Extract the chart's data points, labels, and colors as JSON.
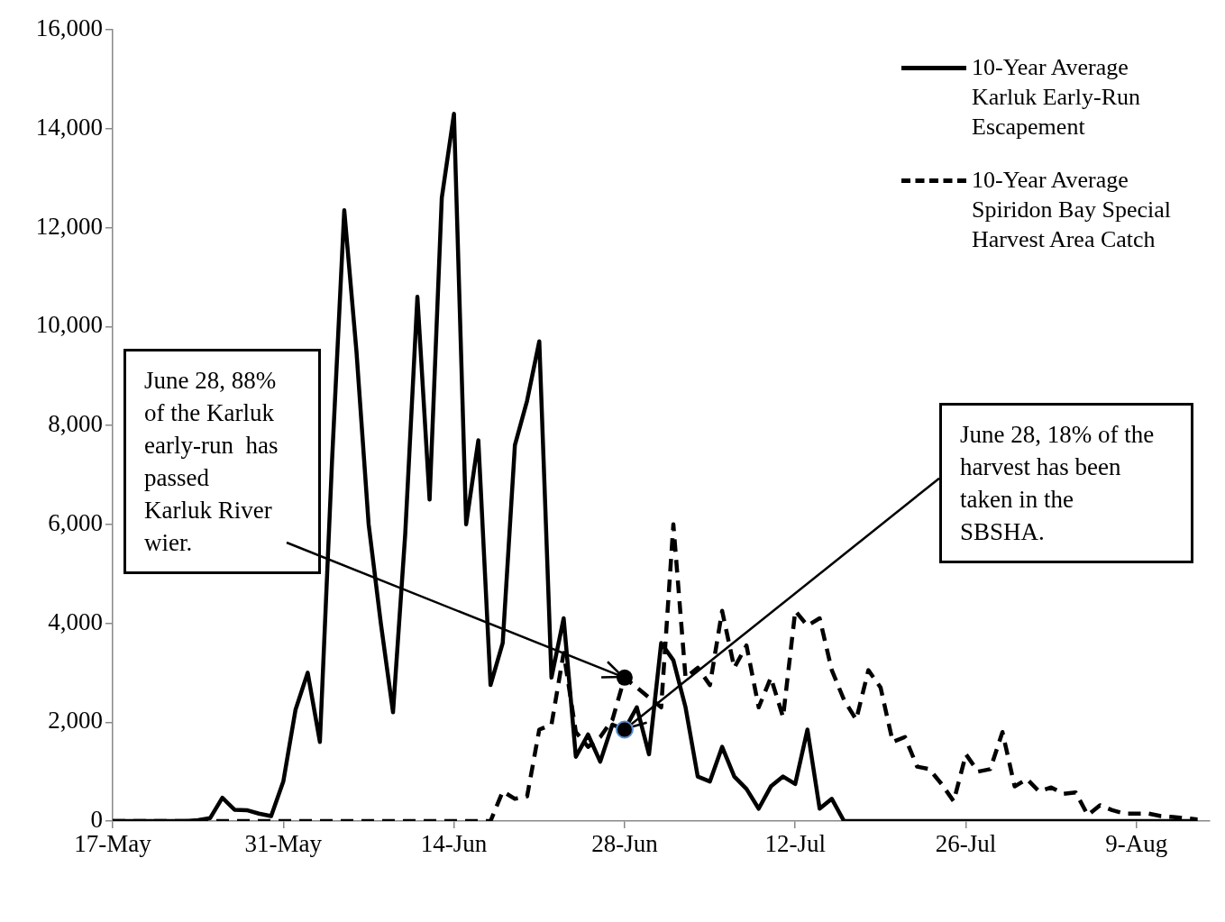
{
  "chart_data": {
    "type": "line",
    "x": [
      "--05-17",
      "--05-18",
      "--05-19",
      "--05-20",
      "--05-21",
      "--05-22",
      "--05-23",
      "--05-24",
      "--05-25",
      "--05-26",
      "--05-27",
      "--05-28",
      "--05-29",
      "--05-30",
      "--05-31",
      "--06-01",
      "--06-02",
      "--06-03",
      "--06-04",
      "--06-05",
      "--06-06",
      "--06-07",
      "--06-08",
      "--06-09",
      "--06-10",
      "--06-11",
      "--06-12",
      "--06-13",
      "--06-14",
      "--06-15",
      "--06-16",
      "--06-17",
      "--06-18",
      "--06-19",
      "--06-20",
      "--06-21",
      "--06-22",
      "--06-23",
      "--06-24",
      "--06-25",
      "--06-26",
      "--06-27",
      "--06-28",
      "--06-29",
      "--06-30",
      "--07-01",
      "--07-02",
      "--07-03",
      "--07-04",
      "--07-05",
      "--07-06",
      "--07-07",
      "--07-08",
      "--07-09",
      "--07-10",
      "--07-11",
      "--07-12",
      "--07-13",
      "--07-14",
      "--07-15",
      "--07-16",
      "--07-17",
      "--07-18",
      "--07-19",
      "--07-20",
      "--07-21",
      "--07-22",
      "--07-23",
      "--07-24",
      "--07-25",
      "--07-26",
      "--07-27",
      "--07-28",
      "--07-29",
      "--07-30",
      "--07-31",
      "--08-01",
      "--08-02",
      "--08-03",
      "--08-04",
      "--08-05",
      "--08-06",
      "--08-07",
      "--08-08",
      "--08-09",
      "--08-10",
      "--08-11",
      "--08-12",
      "--08-13",
      "--08-14"
    ],
    "series": [
      {
        "name": "10-Year Average Karluk Early-Run Escapement",
        "color": "#000000",
        "line_style": "solid",
        "values": [
          0,
          0,
          0,
          0,
          0,
          0,
          0,
          20,
          60,
          470,
          230,
          220,
          150,
          100,
          800,
          2250,
          3000,
          1600,
          7300,
          12350,
          9500,
          6000,
          4000,
          2200,
          5800,
          10600,
          6500,
          12600,
          14300,
          6000,
          7700,
          2750,
          3600,
          7600,
          8500,
          9700,
          2900,
          4100,
          1300,
          1750,
          1200,
          1950,
          1850,
          2300,
          1350,
          3600,
          3250,
          2300,
          900,
          800,
          1500,
          900,
          650,
          250,
          700,
          900,
          750,
          1850,
          250,
          450,
          0,
          0,
          0,
          0,
          0,
          0,
          0,
          0,
          0,
          0,
          0,
          0,
          0,
          0,
          0,
          0,
          0,
          0,
          0,
          0,
          0,
          0,
          0,
          0,
          0,
          0,
          0,
          0,
          0,
          0
        ]
      },
      {
        "name": "10-Year Average Spiridon Bay Special Harvest Area Catch",
        "color": "#000000",
        "line_style": "dashed",
        "values": [
          0,
          0,
          0,
          0,
          0,
          0,
          0,
          0,
          0,
          0,
          0,
          0,
          0,
          0,
          0,
          0,
          0,
          0,
          0,
          0,
          0,
          0,
          0,
          0,
          0,
          0,
          0,
          0,
          0,
          0,
          0,
          0,
          600,
          450,
          500,
          1850,
          1950,
          3400,
          1800,
          1500,
          1700,
          2050,
          2900,
          2700,
          2500,
          2300,
          6000,
          2900,
          3100,
          2750,
          4250,
          3100,
          3550,
          2300,
          2900,
          2100,
          4250,
          3950,
          4100,
          3050,
          2450,
          2050,
          3050,
          2700,
          1600,
          1700,
          1100,
          1050,
          750,
          400,
          1350,
          1000,
          1050,
          1800,
          700,
          850,
          600,
          680,
          550,
          580,
          120,
          320,
          220,
          150,
          150,
          150,
          100,
          80,
          60,
          30
        ]
      }
    ],
    "xlim": [
      "--05-17",
      "--08-15"
    ],
    "xticks": [
      {
        "value": "--05-17",
        "label": "17-May"
      },
      {
        "value": "--05-31",
        "label": "31-May"
      },
      {
        "value": "--06-14",
        "label": "14-Jun"
      },
      {
        "value": "--06-28",
        "label": "28-Jun"
      },
      {
        "value": "--07-12",
        "label": "12-Jul"
      },
      {
        "value": "--07-26",
        "label": "26-Jul"
      },
      {
        "value": "--08-09",
        "label": "9-Aug"
      }
    ],
    "ylim": [
      0,
      16000
    ],
    "yticks": [
      0,
      {
        "value": 2000,
        "label": "2,000"
      },
      {
        "value": 4000,
        "label": "4,000"
      },
      {
        "value": 6000,
        "label": "6,000"
      },
      {
        "value": 8000,
        "label": "8,000"
      },
      {
        "value": 10000,
        "label": "10,000"
      },
      {
        "value": 12000,
        "label": "12,000"
      },
      {
        "value": 14000,
        "label": "14,000"
      },
      {
        "value": 16000,
        "label": "16,000"
      }
    ],
    "legend": "top right",
    "marker": "none",
    "annotations": [
      {
        "text": "June 28, 88% of the Karluk early-run  has passed Karluk River wier.",
        "x": "--06-28",
        "y": 2900
      },
      {
        "text": "June 28, 18% of the harvest has been taken in the SBSHA.",
        "x": "--06-28",
        "y": 1850
      }
    ]
  }
}
